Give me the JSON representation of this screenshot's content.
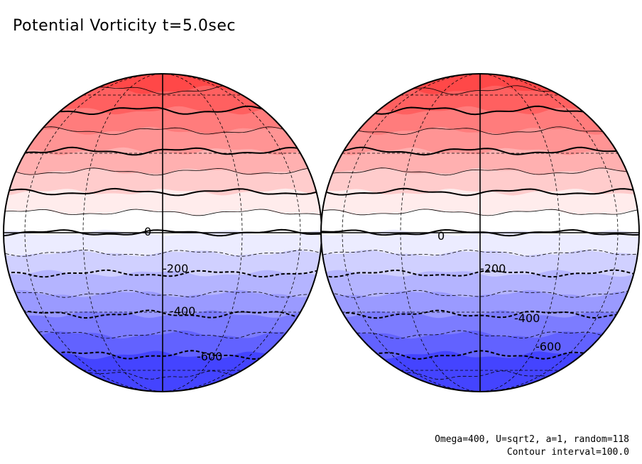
{
  "title": "Potential Vorticity t=5.0sec",
  "info": {
    "params": "Omega=400, U=sqrt2, a=1, random=118",
    "contour": "Contour interval=100.0"
  },
  "chart_data": {
    "type": "contour",
    "title": "Potential Vorticity t=5.0sec",
    "contour_interval": 100.0,
    "projection": "orthographic, two hemispheres",
    "colormap": {
      "positive": "#ff4040",
      "zero": "#ffffff",
      "negative": "#4040ff"
    },
    "globes": [
      {
        "name": "",
        "labels": [
          {
            "text": "0",
            "level": 0
          },
          {
            "text": "-200",
            "level": -200
          },
          {
            "text": "-400",
            "level": -400
          },
          {
            "text": "-600",
            "level": -600
          }
        ]
      },
      {
        "name": "",
        "labels": [
          {
            "text": "0",
            "level": 0
          },
          {
            "text": "-200",
            "level": -200
          },
          {
            "text": "-400",
            "level": -400
          },
          {
            "text": "-600",
            "level": -600
          }
        ]
      }
    ],
    "bands": [
      {
        "level": 700,
        "color": "#ff4848"
      },
      {
        "level": 600,
        "color": "#ff6060"
      },
      {
        "level": 500,
        "color": "#ff7c7c"
      },
      {
        "level": 400,
        "color": "#ff9494"
      },
      {
        "level": 300,
        "color": "#ffb0b0"
      },
      {
        "level": 200,
        "color": "#ffcccc"
      },
      {
        "level": 100,
        "color": "#ffecec"
      },
      {
        "level": 0,
        "color": "#ffffff"
      },
      {
        "level": -100,
        "color": "#ececff"
      },
      {
        "level": -200,
        "color": "#d0d0ff"
      },
      {
        "level": -300,
        "color": "#b4b4ff"
      },
      {
        "level": -400,
        "color": "#9a9aff"
      },
      {
        "level": -500,
        "color": "#7c7cff"
      },
      {
        "level": -600,
        "color": "#6262ff"
      },
      {
        "level": -700,
        "color": "#4444ff"
      }
    ]
  }
}
